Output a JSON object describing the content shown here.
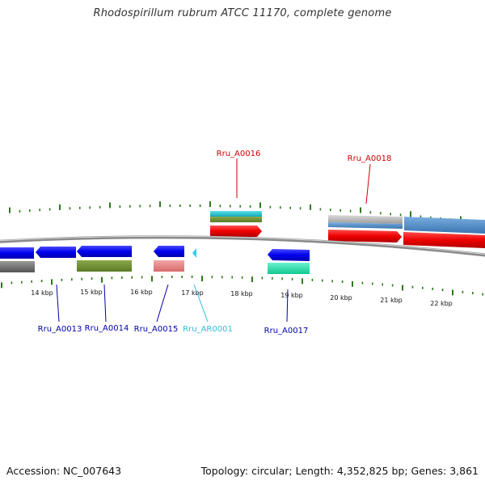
{
  "title": "Rhodospirillum rubrum ATCC 11170, complete genome",
  "footer": {
    "accession": "Accession: NC_007643",
    "summary": "Topology: circular; Length: 4,352,825 bp; Genes: 3,861"
  },
  "colors": {
    "forward_label": "#cc0000",
    "reverse_label": "#0000aa",
    "rna_label": "#33bbdd",
    "backbone": "#888888",
    "tick": "#2a7a1a"
  },
  "scale": {
    "unit": "kbp",
    "labels": [
      "14 kbp",
      "15 kbp",
      "16 kbp",
      "17 kbp",
      "18 kbp",
      "19 kbp",
      "20 kbp",
      "21 kbp",
      "22 kbp"
    ]
  },
  "gene_labels": [
    {
      "text": "Rru_A0016",
      "strand": "forward"
    },
    {
      "text": "Rru_A0018",
      "strand": "forward"
    },
    {
      "text": "Rru_A0013",
      "strand": "reverse"
    },
    {
      "text": "Rru_A0014",
      "strand": "reverse"
    },
    {
      "text": "Rru_A0015",
      "strand": "reverse"
    },
    {
      "text": "Rru_AR0001",
      "strand": "rna"
    },
    {
      "text": "Rru_A0017",
      "strand": "reverse"
    }
  ]
}
